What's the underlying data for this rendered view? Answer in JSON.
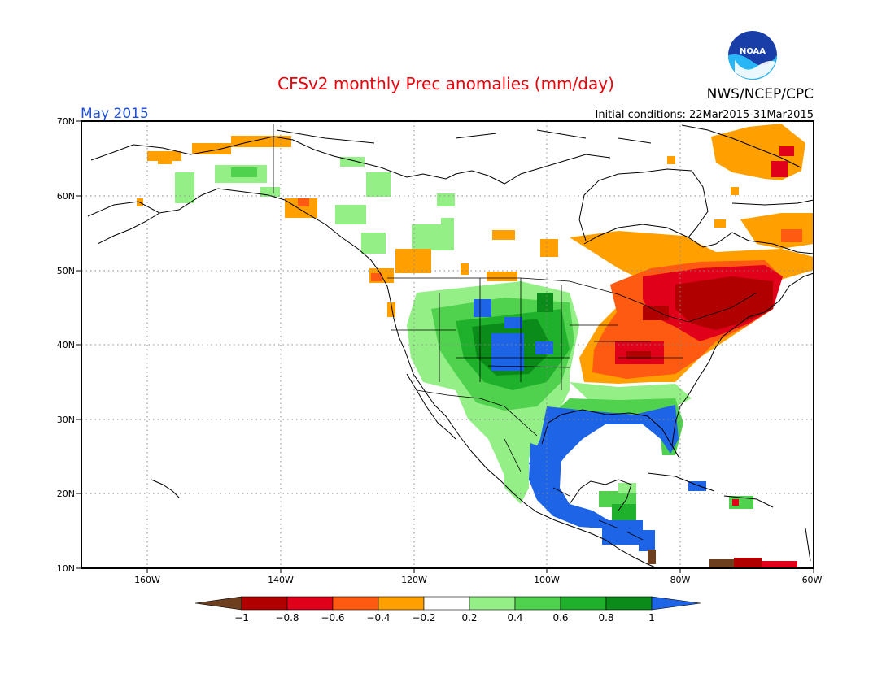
{
  "title": "CFSv2 monthly Prec anomalies (mm/day)",
  "month_label": "May 2015",
  "initial_conditions": "Initial conditions: 22Mar2015-31Mar2015",
  "agency": "NWS/NCEP/CPC",
  "logo_text": "NOAA",
  "map": {
    "lon_ticks": [
      "160W",
      "140W",
      "120W",
      "100W",
      "80W",
      "60W"
    ],
    "lat_ticks": [
      "70N",
      "60N",
      "50N",
      "40N",
      "30N",
      "20N",
      "10N"
    ],
    "gridlines": true
  },
  "colorbar": {
    "labels": [
      "−1",
      "−0.8",
      "−0.6",
      "−0.4",
      "−0.2",
      "0.2",
      "0.4",
      "0.6",
      "0.8",
      "1"
    ],
    "colors": [
      "#6e3f1f",
      "#b00000",
      "#e0001a",
      "#ff5a12",
      "#ffa000",
      "#ffffff",
      "#94ef87",
      "#50d24e",
      "#1fb12b",
      "#0b8c1a",
      "#1e64e6"
    ]
  }
}
